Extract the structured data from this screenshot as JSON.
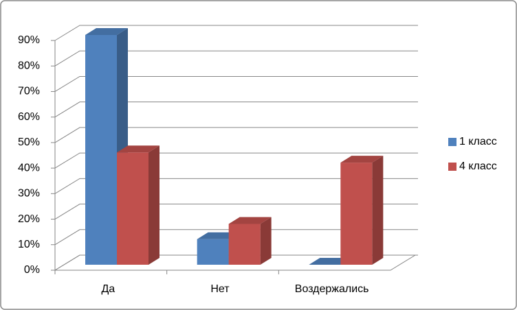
{
  "chart_data": {
    "type": "bar3d",
    "categories": [
      "Да",
      "Нет",
      "Воздержались"
    ],
    "series": [
      {
        "name": "1 класс",
        "color": "#4f81bd",
        "values": [
          90,
          10,
          0
        ]
      },
      {
        "name": "4 класс",
        "color": "#c0504d",
        "values": [
          44,
          16,
          40
        ]
      }
    ],
    "ylim": [
      0,
      90
    ],
    "yticks": [
      {
        "value": 0,
        "label": "0%"
      },
      {
        "value": 10,
        "label": "10%"
      },
      {
        "value": 20,
        "label": "20%"
      },
      {
        "value": 30,
        "label": "30%"
      },
      {
        "value": 40,
        "label": "40%"
      },
      {
        "value": 50,
        "label": "50%"
      },
      {
        "value": 60,
        "label": "60%"
      },
      {
        "value": 70,
        "label": "70%"
      },
      {
        "value": 80,
        "label": "80%"
      },
      {
        "value": 90,
        "label": "90%"
      }
    ],
    "grid": true,
    "legend": "right"
  }
}
